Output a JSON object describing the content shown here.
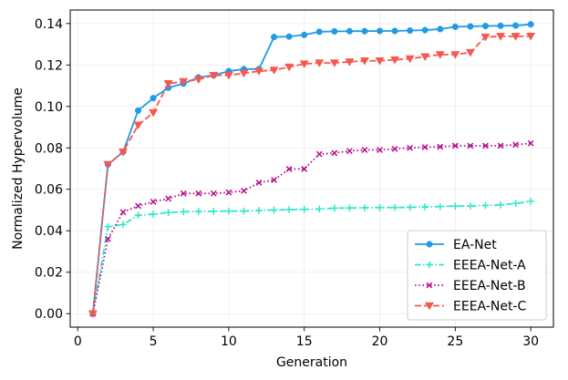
{
  "chart_data": {
    "type": "line",
    "title": "",
    "xlabel": "Generation",
    "ylabel": "Normalized Hypervolume",
    "xlim": [
      -0.5,
      31.5
    ],
    "ylim": [
      -0.0065,
      0.1465
    ],
    "xticks": [
      0,
      5,
      10,
      15,
      20,
      25,
      30
    ],
    "yticks": [
      0.0,
      0.02,
      0.04,
      0.06,
      0.08,
      0.1,
      0.12,
      0.14
    ],
    "ytick_labels": [
      "0.00",
      "0.02",
      "0.04",
      "0.06",
      "0.08",
      "0.10",
      "0.12",
      "0.14"
    ],
    "grid": true,
    "legend_position": "lower-right",
    "x": [
      1,
      2,
      3,
      4,
      5,
      6,
      7,
      8,
      9,
      10,
      11,
      12,
      13,
      14,
      15,
      16,
      17,
      18,
      19,
      20,
      21,
      22,
      23,
      24,
      25,
      26,
      27,
      28,
      29,
      30
    ],
    "series": [
      {
        "name": "EA-Net",
        "color": "#1f9be6",
        "linestyle": "solid",
        "marker": "circle",
        "values": [
          0.0,
          0.072,
          0.078,
          0.098,
          0.104,
          0.109,
          0.111,
          0.114,
          0.115,
          0.117,
          0.118,
          0.118,
          0.1335,
          0.1337,
          0.1345,
          0.136,
          0.1362,
          0.1363,
          0.1363,
          0.1364,
          0.1364,
          0.1366,
          0.1368,
          0.1373,
          0.1384,
          0.1386,
          0.1388,
          0.1389,
          0.139,
          0.1396
        ]
      },
      {
        "name": "EEEA-Net-A",
        "color": "#2de8c8",
        "linestyle": "dashdot",
        "marker": "plus",
        "values": [
          0.0,
          0.042,
          0.043,
          0.0475,
          0.048,
          0.0488,
          0.0492,
          0.0493,
          0.0494,
          0.0495,
          0.0495,
          0.0498,
          0.05,
          0.0502,
          0.0503,
          0.0505,
          0.0509,
          0.051,
          0.0511,
          0.0512,
          0.0512,
          0.0513,
          0.0515,
          0.0517,
          0.0519,
          0.052,
          0.0522,
          0.0525,
          0.0532,
          0.0542
        ]
      },
      {
        "name": "EEEA-Net-B",
        "color": "#b5128c",
        "linestyle": "dotted",
        "marker": "x",
        "values": [
          0.0,
          0.036,
          0.049,
          0.052,
          0.054,
          0.0555,
          0.058,
          0.058,
          0.058,
          0.0585,
          0.0593,
          0.0632,
          0.0645,
          0.0698,
          0.0698,
          0.077,
          0.0775,
          0.0785,
          0.079,
          0.079,
          0.0795,
          0.08,
          0.0803,
          0.0805,
          0.081,
          0.081,
          0.081,
          0.081,
          0.0815,
          0.0822
        ]
      },
      {
        "name": "EEEA-Net-C",
        "color": "#f5584f",
        "linestyle": "dashed",
        "marker": "triangle-down",
        "values": [
          0.0,
          0.072,
          0.078,
          0.091,
          0.097,
          0.111,
          0.112,
          0.113,
          0.115,
          0.115,
          0.116,
          0.117,
          0.1175,
          0.119,
          0.1205,
          0.121,
          0.121,
          0.1215,
          0.122,
          0.122,
          0.1225,
          0.123,
          0.124,
          0.125,
          0.125,
          0.126,
          0.1335,
          0.1338,
          0.1338,
          0.1339
        ]
      }
    ]
  }
}
